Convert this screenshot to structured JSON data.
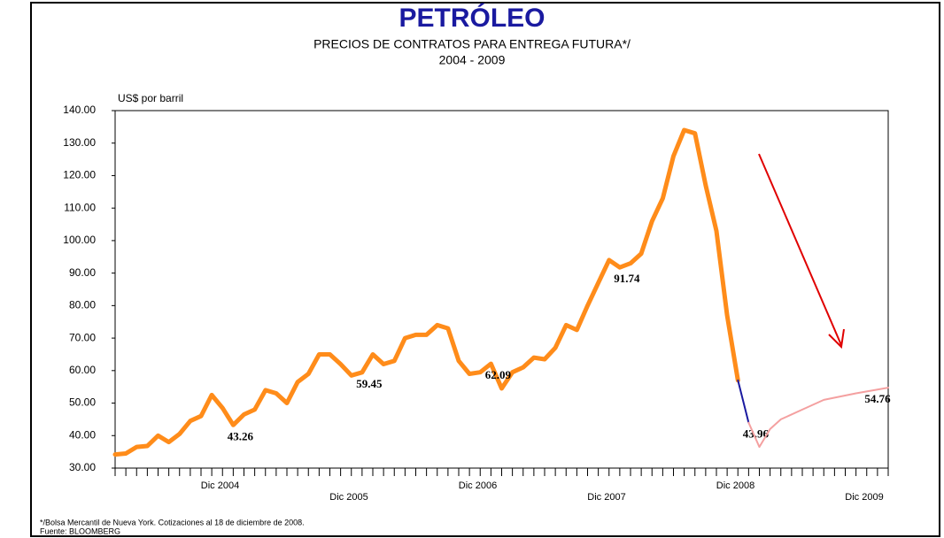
{
  "chart_data": {
    "type": "line",
    "title": "PETRÓLEO",
    "subtitle": "PRECIOS DE CONTRATOS PARA ENTREGA FUTURA*/",
    "period": "2004  -  2009",
    "y_axis_label": "US$ por barril",
    "footnote": "*/Bolsa Mercantil de Nueva York. Cotizaciones al 18 de diciembre de 2008.",
    "source": "Fuente: BLOOMBERG",
    "xlim": [
      0,
      72
    ],
    "xticks": [
      {
        "value": 12,
        "label": "Dic 2004"
      },
      {
        "value": 24,
        "label": "Dic 2005"
      },
      {
        "value": 36,
        "label": "Dic 2006"
      },
      {
        "value": 48,
        "label": "Dic 2007"
      },
      {
        "value": 60,
        "label": "Dic 2008"
      },
      {
        "value": 72,
        "label": "Dic 2009"
      }
    ],
    "ylim": [
      30,
      140
    ],
    "yticks": [
      {
        "value": 30,
        "label": "30.00"
      },
      {
        "value": 40,
        "label": "40.00"
      },
      {
        "value": 50,
        "label": "50.00"
      },
      {
        "value": 60,
        "label": "60.00"
      },
      {
        "value": 70,
        "label": "70.00"
      },
      {
        "value": 80,
        "label": "80.00"
      },
      {
        "value": 90,
        "label": "90.00"
      },
      {
        "value": 100,
        "label": "100.00"
      },
      {
        "value": 110,
        "label": "110.00"
      },
      {
        "value": 120,
        "label": "120.00"
      },
      {
        "value": 130,
        "label": "130.00"
      },
      {
        "value": 140,
        "label": "140.00"
      }
    ],
    "grid": false,
    "series": [
      {
        "color": "#ff8c1a",
        "width": 5,
        "x": [
          0,
          1,
          2,
          3,
          4,
          5,
          6,
          7,
          8,
          9,
          10,
          11,
          12,
          13,
          14,
          15,
          16,
          17,
          18,
          19,
          20,
          21,
          22,
          23,
          24,
          25,
          26,
          27,
          28,
          29,
          30,
          31,
          32,
          33,
          34,
          35,
          36,
          37,
          38,
          39,
          40,
          41,
          42,
          43,
          44,
          45,
          46,
          47,
          48,
          49,
          50,
          51,
          52,
          53,
          54,
          55,
          56,
          57,
          58
        ],
        "values": [
          34.2,
          34.5,
          36.5,
          36.8,
          40,
          38,
          40.5,
          44.5,
          46,
          52.5,
          48.5,
          43.26,
          46.5,
          48,
          54,
          53,
          50,
          56.5,
          59,
          65,
          65,
          62,
          58.5,
          59.45,
          65,
          62,
          63,
          70,
          71,
          71,
          74,
          73,
          63,
          59,
          59.5,
          62.09,
          54.5,
          59.5,
          61,
          64,
          63.5,
          67,
          74,
          72.5,
          80,
          87,
          94,
          91.74,
          93,
          96,
          106,
          113,
          126,
          134,
          133,
          117,
          103,
          77,
          57
        ],
        "value_labels": [
          null,
          null,
          null,
          null,
          null,
          null,
          null,
          null,
          null,
          null,
          null,
          "43.26",
          null,
          null,
          null,
          null,
          null,
          null,
          null,
          null,
          null,
          null,
          null,
          "59.45",
          null,
          null,
          null,
          null,
          null,
          null,
          null,
          null,
          null,
          null,
          null,
          "62.09",
          null,
          null,
          null,
          null,
          null,
          null,
          null,
          null,
          null,
          null,
          null,
          "91.74",
          null,
          null,
          null,
          null,
          null,
          null,
          null,
          null,
          null,
          null,
          null
        ]
      },
      {
        "color": "#1a1aa0",
        "width": 2,
        "x": [
          58,
          59
        ],
        "values": [
          57,
          43.96
        ],
        "value_labels": [
          null,
          "43.96"
        ]
      },
      {
        "color": "#f4a0a0",
        "width": 2,
        "x": [
          59,
          60,
          61,
          62,
          64,
          66,
          69,
          72
        ],
        "values": [
          43.96,
          36.5,
          42,
          45,
          48,
          51,
          53,
          54.76
        ],
        "value_labels": [
          null,
          null,
          null,
          null,
          null,
          null,
          null,
          "54.76"
        ]
      }
    ]
  }
}
